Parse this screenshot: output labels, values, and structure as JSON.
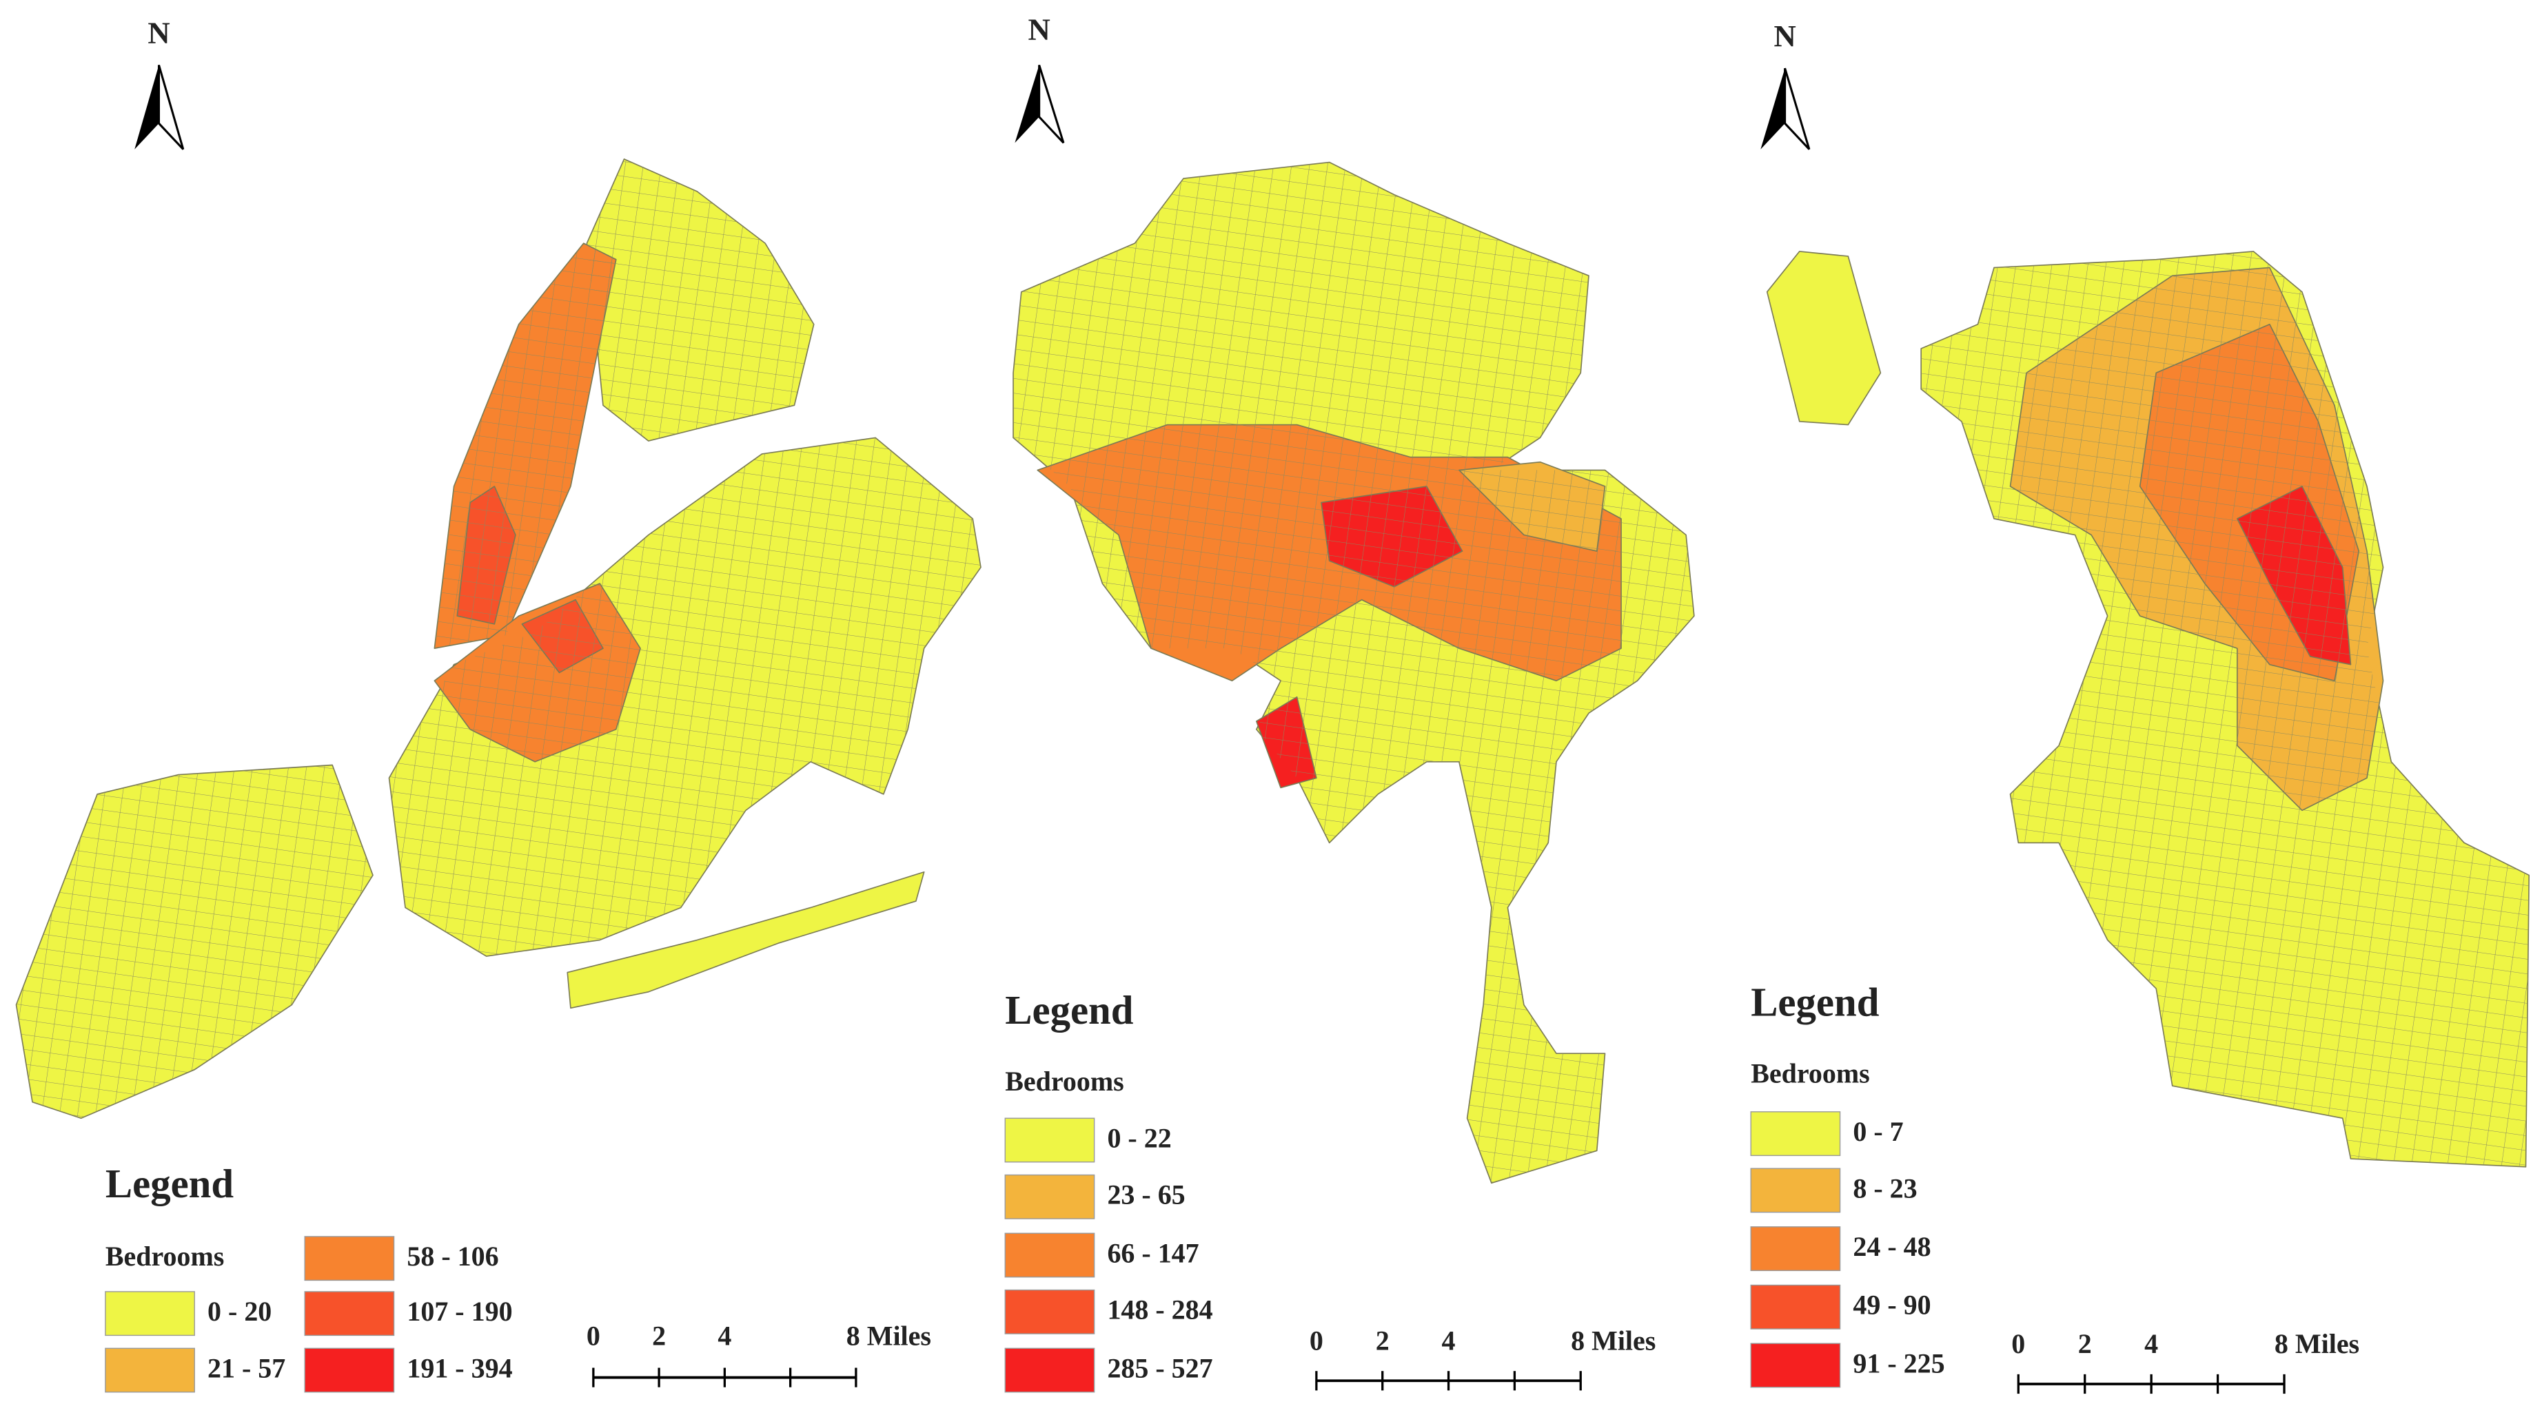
{
  "panels": [
    {
      "north": "N",
      "legend": {
        "title": "Legend",
        "subtitle": "Bedrooms",
        "classes": [
          {
            "label": "0 - 20",
            "color": "#eef545"
          },
          {
            "label": "21 - 57",
            "color": "#f3b43c"
          },
          {
            "label": "58 - 106",
            "color": "#f7832f"
          },
          {
            "label": "107 - 190",
            "color": "#f7522a"
          },
          {
            "label": "191 - 394",
            "color": "#f52020"
          }
        ]
      },
      "scale": {
        "labels": [
          "0",
          "2",
          "4",
          "8 Miles"
        ]
      }
    },
    {
      "north": "N",
      "legend": {
        "title": "Legend",
        "subtitle": "Bedrooms",
        "classes": [
          {
            "label": "0 - 22",
            "color": "#eef545"
          },
          {
            "label": "23 - 65",
            "color": "#f3b43c"
          },
          {
            "label": "66 - 147",
            "color": "#f7832f"
          },
          {
            "label": "148 - 284",
            "color": "#f7522a"
          },
          {
            "label": "285 - 527",
            "color": "#f52020"
          }
        ]
      },
      "scale": {
        "labels": [
          "0",
          "2",
          "4",
          "8 Miles"
        ]
      }
    },
    {
      "north": "N",
      "legend": {
        "title": "Legend",
        "subtitle": "Bedrooms",
        "classes": [
          {
            "label": "0 - 7",
            "color": "#eef545"
          },
          {
            "label": "8 - 23",
            "color": "#f3b43c"
          },
          {
            "label": "24 - 48",
            "color": "#f7832f"
          },
          {
            "label": "49 - 90",
            "color": "#f7522a"
          },
          {
            "label": "91 - 225",
            "color": "#f52020"
          }
        ]
      },
      "scale": {
        "labels": [
          "0",
          "2",
          "4",
          "8 Miles"
        ]
      }
    }
  ]
}
